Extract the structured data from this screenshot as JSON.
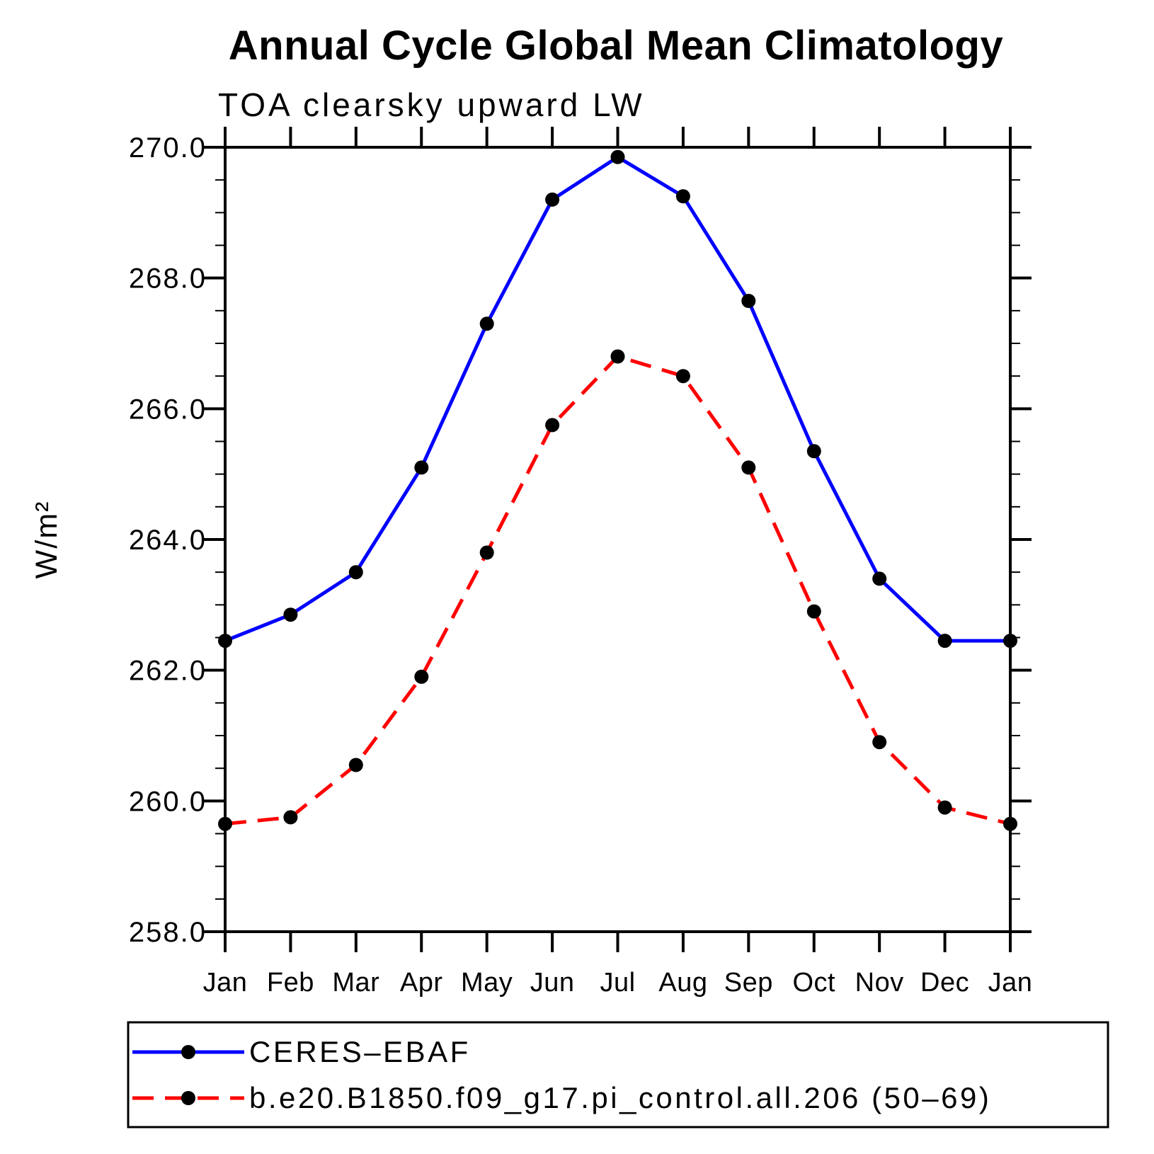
{
  "page": {
    "background": "#ffffff",
    "text_color": "#000000",
    "axis_color": "#000000"
  },
  "chart_data": {
    "type": "line",
    "title": "Annual Cycle Global Mean Climatology",
    "subtitle": "TOA clearsky upward LW",
    "xlabel": "",
    "ylabel": "W/m²",
    "x_categories": [
      "Jan",
      "Feb",
      "Mar",
      "Apr",
      "May",
      "Jun",
      "Jul",
      "Aug",
      "Sep",
      "Oct",
      "Nov",
      "Dec",
      "Jan"
    ],
    "ylim": [
      258.0,
      270.0
    ],
    "ytick_major_interval": 2.0,
    "ytick_minor_interval": 0.5,
    "ytick_labels": [
      "258.0",
      "260.0",
      "262.0",
      "264.0",
      "266.0",
      "268.0",
      "270.0"
    ],
    "grid": false,
    "legend_position": "bottom-left-boxed",
    "series": [
      {
        "name": "CERES–EBAF",
        "color": "#0000ff",
        "line_style": "solid",
        "marker": "filled-circle",
        "marker_color": "#000000",
        "values": [
          262.45,
          262.85,
          263.5,
          265.1,
          267.3,
          269.2,
          269.85,
          269.25,
          267.65,
          265.35,
          263.4,
          262.45,
          262.45
        ]
      },
      {
        "name": "b.e20.B1850.f09_g17.pi_control.all.206 (50–69)",
        "color": "#ff0000",
        "line_style": "dashed",
        "marker": "filled-circle",
        "marker_color": "#000000",
        "values": [
          259.65,
          259.75,
          260.55,
          261.9,
          263.8,
          265.75,
          266.8,
          266.5,
          265.1,
          262.9,
          260.9,
          259.9,
          259.65
        ]
      }
    ]
  }
}
